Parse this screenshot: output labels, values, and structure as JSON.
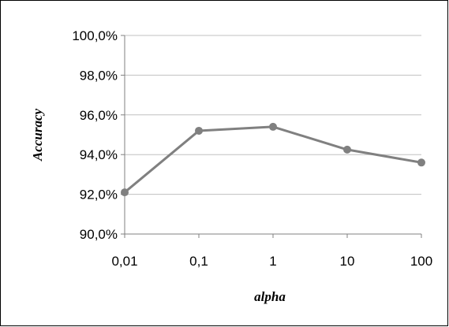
{
  "chart_data": {
    "type": "line",
    "title": "",
    "xlabel": "alpha",
    "ylabel": "Accuracy",
    "x_scale": "log",
    "categories": [
      "0,01",
      "0,1",
      "1",
      "10",
      "100"
    ],
    "x": [
      0.01,
      0.1,
      1,
      10,
      100
    ],
    "y_tick_labels": [
      "90,0%",
      "92,0%",
      "94,0%",
      "96,0%",
      "98,0%",
      "100,0%"
    ],
    "y_ticks": [
      90,
      92,
      94,
      96,
      98,
      100
    ],
    "ylim": [
      90,
      100
    ],
    "grid": true,
    "legend": "none",
    "series": [
      {
        "values": [
          92.1,
          95.2,
          95.4,
          94.25,
          93.6
        ],
        "color": "#808080"
      }
    ]
  }
}
